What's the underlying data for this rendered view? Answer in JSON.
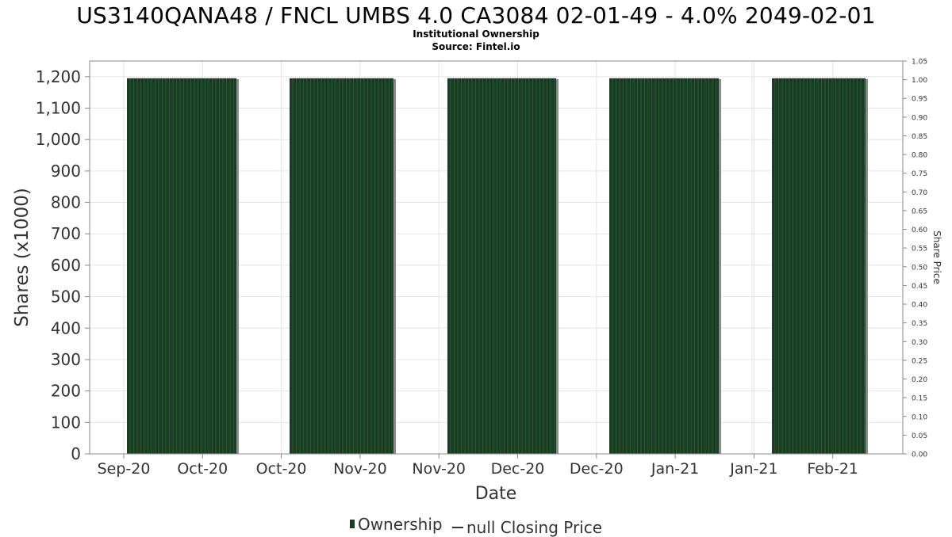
{
  "header": {
    "title": "US3140QANA48 / FNCL UMBS 4.0 CA3084 02-01-49 - 4.0% 2049-02-01",
    "subtitle": "Institutional Ownership",
    "source": "Source: Fintel.io"
  },
  "legend": {
    "ownership_label": "Ownership",
    "price_label": "null Closing Price"
  },
  "colors": {
    "bar_fill": "#1a3c22",
    "bar_stripe": "#2a5a33",
    "bar_shadow": "#8a8a8a",
    "grid": "#e4e4e4",
    "axis_text": "#333333"
  },
  "chart_data": {
    "type": "bar",
    "title": "US3140QANA48 / FNCL UMBS 4.0 CA3084 02-01-49 - 4.0% 2049-02-01",
    "subtitle": "Institutional Ownership",
    "xlabel": "Date",
    "ylabel": "Shares (x1000)",
    "y2label": "Share Price",
    "ylim": [
      0,
      1250
    ],
    "y2lim": [
      0,
      1.05
    ],
    "yticks": [
      "0",
      "100",
      "200",
      "300",
      "400",
      "500",
      "600",
      "700",
      "800",
      "900",
      "1,000",
      "1,100",
      "1,200"
    ],
    "y2ticks": [
      "0.00",
      "0.05",
      "0.10",
      "0.15",
      "0.20",
      "0.25",
      "0.30",
      "0.35",
      "0.40",
      "0.45",
      "0.50",
      "0.55",
      "0.60",
      "0.65",
      "0.70",
      "0.75",
      "0.80",
      "0.85",
      "0.90",
      "0.95",
      "1.00",
      "1.05"
    ],
    "xticks": [
      "Sep-20",
      "Oct-20",
      "Oct-20",
      "Nov-20",
      "Nov-20",
      "Dec-20",
      "Dec-20",
      "Jan-21",
      "Jan-21",
      "Feb-21"
    ],
    "series": [
      {
        "name": "Ownership",
        "bars": [
          {
            "start": "Sep-20",
            "end": "Oct-20",
            "value": 1195
          },
          {
            "start": "Oct-20",
            "end": "Nov-20",
            "value": 1195
          },
          {
            "start": "Nov-20",
            "end": "Dec-20",
            "value": 1195
          },
          {
            "start": "Dec-20",
            "end": "Jan-21",
            "value": 1195
          },
          {
            "start": "Jan-21",
            "end": "Feb-21",
            "value": 1195
          }
        ]
      },
      {
        "name": "null Closing Price",
        "values": []
      }
    ],
    "grid": true,
    "legend_position": "bottom"
  }
}
